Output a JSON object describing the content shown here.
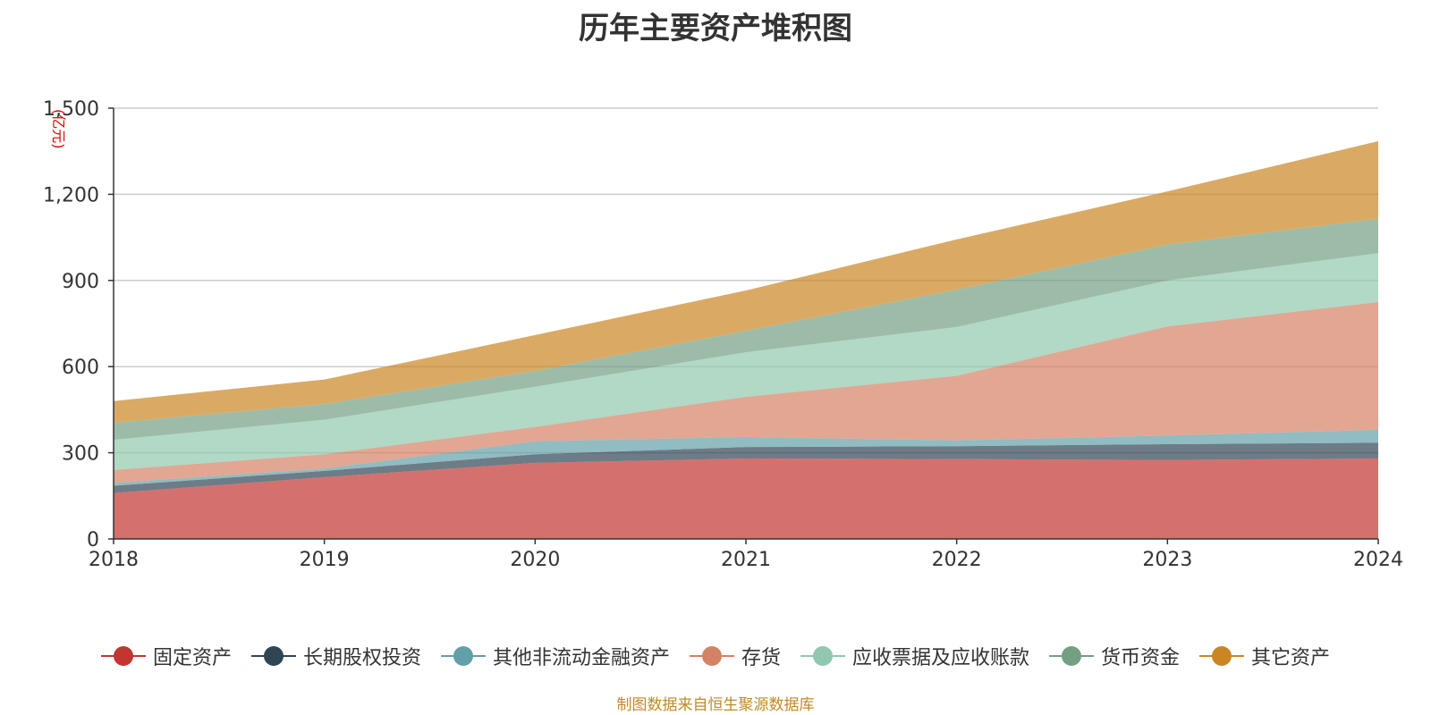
{
  "chart_data": {
    "type": "area",
    "stacked": true,
    "title": "历年主要资产堆积图",
    "ylabel": "(亿元)",
    "xlabel": "",
    "x": [
      "2018",
      "2019",
      "2020",
      "2021",
      "2022",
      "2023",
      "2024"
    ],
    "ylim": [
      0,
      1500
    ],
    "yticks": [
      "0",
      "300",
      "600",
      "900",
      "1,200",
      "1,500"
    ],
    "ytick_values": [
      0,
      300,
      600,
      900,
      1200,
      1500
    ],
    "grid": true,
    "legend_position": "bottom-center",
    "series": [
      {
        "name": "固定资产",
        "color": "#c23531",
        "values": [
          160,
          215,
          265,
          280,
          278,
          275,
          280
        ]
      },
      {
        "name": "长期股权投资",
        "color": "#2f4554",
        "values": [
          25,
          22,
          30,
          40,
          45,
          55,
          55
        ]
      },
      {
        "name": "其他非流动金融资产",
        "color": "#61a0a8",
        "values": [
          10,
          8,
          45,
          35,
          20,
          30,
          45
        ]
      },
      {
        "name": "存货",
        "color": "#d48265",
        "values": [
          45,
          50,
          50,
          140,
          225,
          380,
          445
        ]
      },
      {
        "name": "应收票据及应收账款",
        "color": "#91c7ae",
        "values": [
          105,
          120,
          140,
          155,
          170,
          160,
          170
        ]
      },
      {
        "name": "货币资金",
        "color": "#749f83",
        "values": [
          60,
          55,
          55,
          75,
          130,
          125,
          120
        ]
      },
      {
        "name": "其它资产",
        "color": "#ca8622",
        "values": [
          75,
          85,
          125,
          140,
          175,
          185,
          270
        ]
      }
    ]
  },
  "source_note": "制图数据来自恒生聚源数据库"
}
